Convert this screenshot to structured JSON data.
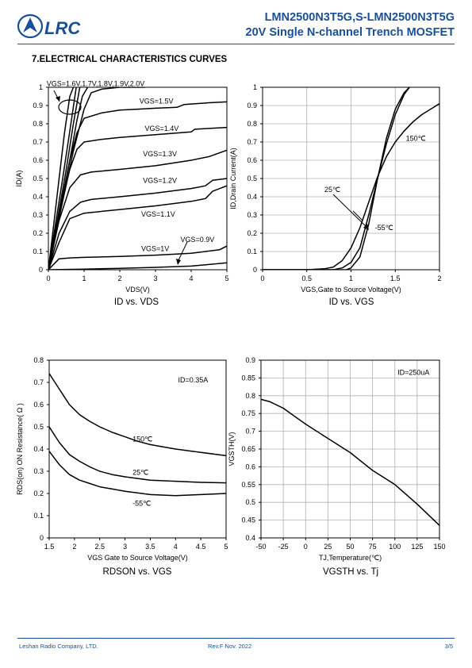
{
  "header": {
    "logo_text": "LRC",
    "title_line1": "LMN2500N3T5G,S-LMN2500N3T5G",
    "title_line2": "20V Single N-channel Trench MOSFET",
    "brand_color": "#1a4f9c"
  },
  "section_title": "7.ELECTRICAL CHARACTERISTICS CURVES",
  "footer": {
    "company": "Leshan Radio Company, LTD.",
    "revision": "Rev.F   Nov.   2022",
    "page": "3/5"
  },
  "chart_data": [
    {
      "type": "line",
      "caption": "ID vs. VDS",
      "title": "",
      "xlabel": "VDS(V)",
      "ylabel": "ID(A)",
      "xlim": [
        0,
        5
      ],
      "ylim": [
        0,
        1
      ],
      "xticks": [
        0,
        1,
        2,
        3,
        4,
        5
      ],
      "yticks": [
        0,
        0.1,
        0.2,
        0.3,
        0.4,
        0.5,
        0.6,
        0.7,
        0.8,
        0.9,
        1
      ],
      "grid": false,
      "annotations": [
        {
          "text": "VGS=1.6V,1.7V,1.8V,1.9V,2.0V",
          "x": -0.05,
          "y": 1.02
        },
        {
          "text": "VGS=1.5V",
          "x": 2.55,
          "y": 0.925
        },
        {
          "text": "VGS=1.4V",
          "x": 2.7,
          "y": 0.775
        },
        {
          "text": "VGS=1.3V",
          "x": 2.65,
          "y": 0.635
        },
        {
          "text": "VGS=1.2V",
          "x": 2.65,
          "y": 0.49
        },
        {
          "text": "VGS=1.1V",
          "x": 2.6,
          "y": 0.305
        },
        {
          "text": "VGS=0.9V",
          "x": 3.7,
          "y": 0.165
        },
        {
          "text": "VGS=1V",
          "x": 2.6,
          "y": 0.115
        }
      ],
      "series": [
        {
          "x": [
            0,
            0.15,
            0.3,
            0.45,
            0.6,
            0.7
          ],
          "y": [
            0,
            0.25,
            0.5,
            0.75,
            0.95,
            1.0
          ]
        },
        {
          "x": [
            0,
            0.2,
            0.4,
            0.6,
            0.78
          ],
          "y": [
            0,
            0.25,
            0.5,
            0.76,
            1.0
          ]
        },
        {
          "x": [
            0,
            0.25,
            0.5,
            0.7,
            0.88
          ],
          "y": [
            0,
            0.27,
            0.55,
            0.8,
            1.0
          ]
        },
        {
          "x": [
            0,
            0.3,
            0.6,
            0.8,
            0.95,
            1.1
          ],
          "y": [
            0,
            0.3,
            0.6,
            0.82,
            0.95,
            1.0
          ]
        },
        {
          "x": [
            0,
            0.35,
            0.7,
            1.0,
            1.2,
            1.5,
            2.0,
            2.7
          ],
          "y": [
            0,
            0.33,
            0.65,
            0.88,
            0.97,
            0.99,
            1.0,
            1.0
          ]
        },
        {
          "x": [
            0,
            0.3,
            0.6,
            0.8,
            1.0,
            1.5,
            2.0,
            2.5,
            3.0,
            3.6,
            3.8,
            4.5,
            5.0
          ],
          "y": [
            0,
            0.3,
            0.6,
            0.75,
            0.83,
            0.86,
            0.875,
            0.88,
            0.885,
            0.89,
            0.905,
            0.915,
            0.92
          ]
        },
        {
          "x": [
            0,
            0.3,
            0.6,
            0.8,
            1.0,
            1.5,
            2.0,
            3.0,
            4.0,
            4.1,
            5.0
          ],
          "y": [
            0,
            0.3,
            0.55,
            0.66,
            0.7,
            0.715,
            0.725,
            0.74,
            0.755,
            0.77,
            0.78
          ]
        },
        {
          "x": [
            0,
            0.3,
            0.6,
            0.9,
            1.2,
            2.0,
            3.0,
            4.0,
            4.5,
            5.0
          ],
          "y": [
            0,
            0.27,
            0.45,
            0.52,
            0.535,
            0.55,
            0.57,
            0.6,
            0.62,
            0.655
          ]
        },
        {
          "x": [
            0,
            0.3,
            0.6,
            0.9,
            1.2,
            2.0,
            3.0,
            4.0,
            4.4,
            4.6,
            5.0
          ],
          "y": [
            0,
            0.2,
            0.32,
            0.37,
            0.385,
            0.4,
            0.42,
            0.445,
            0.46,
            0.49,
            0.5
          ]
        },
        {
          "x": [
            0,
            0.3,
            0.6,
            1.0,
            2.0,
            3.0,
            4.0,
            4.4,
            4.6,
            5.0
          ],
          "y": [
            0,
            0.15,
            0.28,
            0.31,
            0.33,
            0.35,
            0.375,
            0.39,
            0.43,
            0.46
          ]
        },
        {
          "x": [
            0,
            0.3,
            0.6,
            1.0,
            2.0,
            3.0,
            4.0,
            4.8,
            5.0
          ],
          "y": [
            0,
            0.06,
            0.065,
            0.068,
            0.073,
            0.08,
            0.09,
            0.11,
            0.13
          ]
        },
        {
          "x": [
            0,
            1,
            2,
            3,
            4,
            5
          ],
          "y": [
            0,
            0.003,
            0.008,
            0.013,
            0.02,
            0.038
          ]
        }
      ]
    },
    {
      "type": "line",
      "caption": "ID vs. VGS",
      "title": "",
      "xlabel": "VGS,Gate to Source Voltage(V)",
      "ylabel": "ID,Drain Current(A)",
      "xlim": [
        0,
        2
      ],
      "ylim": [
        0,
        1
      ],
      "xticks": [
        0,
        0.5,
        1,
        1.5,
        2
      ],
      "yticks": [
        0,
        0.1,
        0.2,
        0.3,
        0.4,
        0.5,
        0.6,
        0.7,
        0.8,
        0.9,
        1
      ],
      "grid": true,
      "annotations": [
        {
          "text": "150℃",
          "x": 1.62,
          "y": 0.72
        },
        {
          "text": "25℃",
          "x": 0.7,
          "y": 0.44
        },
        {
          "text": "-55℃",
          "x": 1.27,
          "y": 0.23
        }
      ],
      "series": [
        {
          "name": "150℃",
          "x": [
            0,
            0.5,
            0.7,
            0.8,
            0.9,
            1.0,
            1.1,
            1.2,
            1.3,
            1.4,
            1.5,
            1.6,
            1.7,
            1.8,
            1.9,
            2.0
          ],
          "y": [
            0,
            0,
            0.005,
            0.015,
            0.05,
            0.12,
            0.23,
            0.37,
            0.51,
            0.62,
            0.7,
            0.76,
            0.81,
            0.85,
            0.88,
            0.91
          ]
        },
        {
          "name": "25℃",
          "x": [
            0,
            0.8,
            0.9,
            1.0,
            1.1,
            1.2,
            1.3,
            1.4,
            1.5,
            1.6,
            1.66
          ],
          "y": [
            0,
            0,
            0.01,
            0.04,
            0.12,
            0.3,
            0.5,
            0.69,
            0.85,
            0.96,
            1.0
          ]
        },
        {
          "name": "-55℃",
          "x": [
            0,
            0.95,
            1.0,
            1.1,
            1.2,
            1.3,
            1.4,
            1.5,
            1.6,
            1.66
          ],
          "y": [
            0,
            0,
            0.01,
            0.07,
            0.25,
            0.5,
            0.72,
            0.88,
            0.97,
            1.0
          ]
        }
      ]
    },
    {
      "type": "line",
      "caption": "RDSON vs. VGS",
      "title": "",
      "xlabel": "VGS Gate to Source Voltage(V)",
      "ylabel": "RDS(on) ON Resistance( Ω )",
      "xlim": [
        1.5,
        5
      ],
      "ylim": [
        0,
        0.8
      ],
      "xticks": [
        1.5,
        2,
        2.5,
        3,
        3.5,
        4,
        4.5,
        5
      ],
      "yticks": [
        0,
        0.1,
        0.2,
        0.3,
        0.4,
        0.5,
        0.6,
        0.7,
        0.8
      ],
      "grid": false,
      "annotations": [
        {
          "text": "ID=0.35A",
          "x": 4.05,
          "y": 0.71
        },
        {
          "text": "150℃",
          "x": 3.15,
          "y": 0.445
        },
        {
          "text": "25℃",
          "x": 3.15,
          "y": 0.295
        },
        {
          "text": "-55℃",
          "x": 3.15,
          "y": 0.155
        }
      ],
      "series": [
        {
          "name": "150℃",
          "x": [
            1.5,
            1.7,
            1.9,
            2.1,
            2.3,
            2.5,
            2.75,
            3.0,
            3.25,
            3.5,
            3.75,
            4.0,
            4.5,
            5.0
          ],
          "y": [
            0.74,
            0.67,
            0.6,
            0.555,
            0.525,
            0.5,
            0.475,
            0.455,
            0.435,
            0.42,
            0.41,
            0.4,
            0.385,
            0.37
          ]
        },
        {
          "name": "25℃",
          "x": [
            1.5,
            1.7,
            1.9,
            2.1,
            2.3,
            2.5,
            2.75,
            3.0,
            3.5,
            4.0,
            4.5,
            5.0
          ],
          "y": [
            0.5,
            0.43,
            0.375,
            0.345,
            0.32,
            0.3,
            0.285,
            0.275,
            0.26,
            0.255,
            0.25,
            0.248
          ]
        },
        {
          "name": "-55℃",
          "x": [
            1.5,
            1.7,
            1.9,
            2.1,
            2.3,
            2.5,
            2.75,
            3.0,
            3.5,
            4.0,
            4.5,
            5.0
          ],
          "y": [
            0.39,
            0.33,
            0.285,
            0.26,
            0.245,
            0.23,
            0.22,
            0.21,
            0.195,
            0.19,
            0.195,
            0.2
          ]
        }
      ]
    },
    {
      "type": "line",
      "caption": "VGSTH vs. Tj",
      "title": "",
      "xlabel": "TJ,Temperature(℃)",
      "ylabel": "VGSTH(V)",
      "xlim": [
        -50,
        150
      ],
      "ylim": [
        0.4,
        0.9
      ],
      "xticks": [
        -50,
        -25,
        0,
        25,
        50,
        75,
        100,
        125,
        150
      ],
      "yticks": [
        0.4,
        0.45,
        0.5,
        0.55,
        0.6,
        0.65,
        0.7,
        0.75,
        0.8,
        0.85,
        0.9
      ],
      "grid": true,
      "annotations": [
        {
          "text": "ID=250uA",
          "x": 103,
          "y": 0.865
        }
      ],
      "series": [
        {
          "x": [
            -50,
            -40,
            -25,
            -10,
            0,
            25,
            50,
            75,
            100,
            125,
            150
          ],
          "y": [
            0.79,
            0.783,
            0.765,
            0.738,
            0.72,
            0.68,
            0.64,
            0.59,
            0.55,
            0.495,
            0.435
          ]
        }
      ]
    }
  ]
}
